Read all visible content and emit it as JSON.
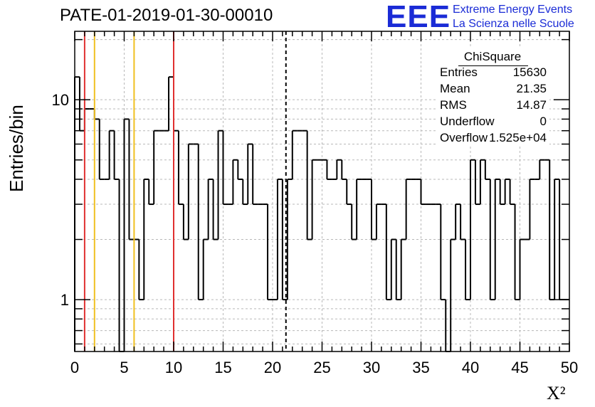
{
  "chart_data": {
    "type": "histogram",
    "title": "PATE-01-2019-01-30-00010",
    "xlabel": "X²",
    "ylabel": "Entries/bin",
    "xlim": [
      0,
      50
    ],
    "ylim": [
      0.55,
      22
    ],
    "log_y": true,
    "grid": true,
    "bin_width": 0.5,
    "x_ticks": [
      0,
      5,
      10,
      15,
      20,
      25,
      30,
      35,
      40,
      45,
      50
    ],
    "y_ticks": [
      {
        "value": 1,
        "label": "1"
      },
      {
        "value": 10,
        "label": "10"
      }
    ],
    "counts": [
      13,
      7,
      9,
      9,
      8,
      4,
      4,
      7,
      4,
      0,
      8,
      2,
      2,
      1,
      4,
      3,
      7,
      7,
      7,
      13,
      7,
      3,
      2,
      6,
      6,
      1,
      2,
      4,
      2,
      7,
      3,
      3,
      5,
      4,
      3,
      6,
      3,
      3,
      3,
      1,
      1,
      4,
      1,
      4,
      7,
      7,
      7,
      2,
      5,
      5,
      5,
      4,
      4,
      5,
      4,
      3,
      2,
      4,
      4,
      4,
      2,
      3,
      3,
      1,
      2,
      1,
      2,
      4,
      4,
      4,
      3,
      3,
      3,
      3,
      1,
      0,
      2,
      3,
      2,
      1,
      5,
      3,
      5,
      4,
      1,
      4,
      3,
      4,
      3,
      1,
      2,
      2,
      4,
      4,
      5,
      5,
      1,
      4,
      1,
      1
    ],
    "lines": [
      {
        "x": 1,
        "color": "#e03030",
        "style": "solid"
      },
      {
        "x": 2,
        "color": "#f0c020",
        "style": "solid"
      },
      {
        "x": 6,
        "color": "#f0c020",
        "style": "solid"
      },
      {
        "x": 10,
        "color": "#e03030",
        "style": "solid"
      },
      {
        "x": 21.35,
        "color": "#000000",
        "style": "dashed"
      }
    ],
    "stats": {
      "title": "ChiSquare",
      "rows": [
        {
          "key": "Entries",
          "value": "15630"
        },
        {
          "key": "Mean",
          "value": "21.35"
        },
        {
          "key": "RMS",
          "value": "14.87"
        },
        {
          "key": "Underflow",
          "value": "0"
        },
        {
          "key": "Overflow",
          "value": "1.525e+04"
        }
      ]
    }
  },
  "logo": {
    "mark": "EEE",
    "line1": "Extreme Energy Events",
    "line2": "La Scienza nelle Scuole",
    "color": "#1a2bd6"
  }
}
